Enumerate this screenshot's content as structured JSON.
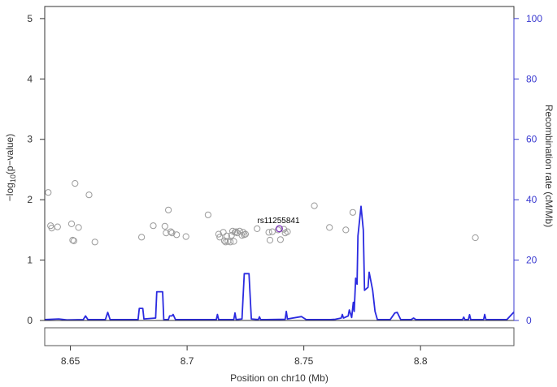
{
  "colors": {
    "recombination": "#2a2ae0",
    "points": "#9a9a9a",
    "lead_snp": "#7a2fb8",
    "axis": "#333333",
    "right_axis": "#3a3ad0"
  },
  "chart_data": {
    "type": "scatter",
    "xlabel": "Position on chr10 (Mb)",
    "ylabel_left": "-log10(p-value)",
    "ylabel_left_parts": {
      "pre": "−log",
      "sub": "10",
      "post": "(p−value)"
    },
    "ylabel_right": "Recombination rate (cM/Mb)",
    "xlim": [
      8.639,
      8.84
    ],
    "ylim_left": [
      0,
      5.2
    ],
    "ylim_right": [
      0,
      104
    ],
    "x_ticks": [
      8.65,
      8.7,
      8.75,
      8.8
    ],
    "x_tick_labels": [
      "8.65",
      "8.7",
      "8.75",
      "8.8"
    ],
    "y_left_ticks": [
      0,
      1,
      2,
      3,
      4,
      5
    ],
    "y_left_tick_labels": [
      "0",
      "1",
      "2",
      "3",
      "4",
      "5"
    ],
    "y_right_ticks": [
      0,
      20,
      40,
      60,
      80,
      100
    ],
    "y_right_tick_labels": [
      "0",
      "20",
      "40",
      "60",
      "80",
      "100"
    ],
    "lead_snp": {
      "name": "rs11255841",
      "x": 8.7395,
      "y": 1.52
    },
    "snps": [
      {
        "x": 8.6405,
        "y": 2.12
      },
      {
        "x": 8.6415,
        "y": 1.57
      },
      {
        "x": 8.642,
        "y": 1.53
      },
      {
        "x": 8.6445,
        "y": 1.55
      },
      {
        "x": 8.6505,
        "y": 1.6
      },
      {
        "x": 8.651,
        "y": 1.33
      },
      {
        "x": 8.6515,
        "y": 1.32
      },
      {
        "x": 8.652,
        "y": 2.27
      },
      {
        "x": 8.6535,
        "y": 1.54
      },
      {
        "x": 8.658,
        "y": 2.08
      },
      {
        "x": 8.6605,
        "y": 1.3
      },
      {
        "x": 8.6805,
        "y": 1.38
      },
      {
        "x": 8.6855,
        "y": 1.57
      },
      {
        "x": 8.6905,
        "y": 1.56
      },
      {
        "x": 8.691,
        "y": 1.45
      },
      {
        "x": 8.692,
        "y": 1.83
      },
      {
        "x": 8.693,
        "y": 1.47
      },
      {
        "x": 8.6935,
        "y": 1.45
      },
      {
        "x": 8.6955,
        "y": 1.42
      },
      {
        "x": 8.6995,
        "y": 1.39
      },
      {
        "x": 8.709,
        "y": 1.75
      },
      {
        "x": 8.7135,
        "y": 1.43
      },
      {
        "x": 8.714,
        "y": 1.38
      },
      {
        "x": 8.7155,
        "y": 1.46
      },
      {
        "x": 8.716,
        "y": 1.32
      },
      {
        "x": 8.7165,
        "y": 1.3
      },
      {
        "x": 8.717,
        "y": 1.4
      },
      {
        "x": 8.7175,
        "y": 1.31
      },
      {
        "x": 8.7185,
        "y": 1.3
      },
      {
        "x": 8.719,
        "y": 1.41
      },
      {
        "x": 8.7195,
        "y": 1.48
      },
      {
        "x": 8.72,
        "y": 1.31
      },
      {
        "x": 8.7205,
        "y": 1.46
      },
      {
        "x": 8.721,
        "y": 1.47
      },
      {
        "x": 8.7215,
        "y": 1.45
      },
      {
        "x": 8.7225,
        "y": 1.48
      },
      {
        "x": 8.7235,
        "y": 1.41
      },
      {
        "x": 8.724,
        "y": 1.46
      },
      {
        "x": 8.7245,
        "y": 1.42
      },
      {
        "x": 8.725,
        "y": 1.43
      },
      {
        "x": 8.73,
        "y": 1.52
      },
      {
        "x": 8.735,
        "y": 1.46
      },
      {
        "x": 8.7355,
        "y": 1.33
      },
      {
        "x": 8.7365,
        "y": 1.47
      },
      {
        "x": 8.739,
        "y": 1.5
      },
      {
        "x": 8.74,
        "y": 1.34
      },
      {
        "x": 8.7415,
        "y": 1.51
      },
      {
        "x": 8.742,
        "y": 1.45
      },
      {
        "x": 8.743,
        "y": 1.47
      },
      {
        "x": 8.7545,
        "y": 1.9
      },
      {
        "x": 8.761,
        "y": 1.54
      },
      {
        "x": 8.768,
        "y": 1.5
      },
      {
        "x": 8.771,
        "y": 1.79
      },
      {
        "x": 8.8235,
        "y": 1.37
      }
    ],
    "recombination": [
      [
        8.639,
        0.3
      ],
      [
        8.645,
        0.5
      ],
      [
        8.6485,
        0.2
      ],
      [
        8.6555,
        0.3
      ],
      [
        8.6565,
        1.5
      ],
      [
        8.6575,
        0.3
      ],
      [
        8.665,
        0.3
      ],
      [
        8.666,
        2.7
      ],
      [
        8.667,
        0.3
      ],
      [
        8.679,
        0.3
      ],
      [
        8.6795,
        4.0
      ],
      [
        8.681,
        4.0
      ],
      [
        8.6815,
        0.5
      ],
      [
        8.6865,
        0.8
      ],
      [
        8.687,
        9.5
      ],
      [
        8.6895,
        9.5
      ],
      [
        8.69,
        0.3
      ],
      [
        8.692,
        0.3
      ],
      [
        8.6925,
        1.5
      ],
      [
        8.6935,
        1.5
      ],
      [
        8.694,
        2.0
      ],
      [
        8.695,
        0.3
      ],
      [
        8.7125,
        0.3
      ],
      [
        8.713,
        2.0
      ],
      [
        8.7135,
        0.3
      ],
      [
        8.72,
        0.3
      ],
      [
        8.7205,
        2.5
      ],
      [
        8.721,
        0.3
      ],
      [
        8.7235,
        0.5
      ],
      [
        8.7245,
        15.5
      ],
      [
        8.7265,
        15.5
      ],
      [
        8.7275,
        0.5
      ],
      [
        8.7305,
        0.3
      ],
      [
        8.731,
        1.2
      ],
      [
        8.7315,
        0.3
      ],
      [
        8.734,
        0.3
      ],
      [
        8.742,
        0.4
      ],
      [
        8.7425,
        3.0
      ],
      [
        8.743,
        0.5
      ],
      [
        8.749,
        1.3
      ],
      [
        8.751,
        0.3
      ],
      [
        8.7615,
        0.3
      ],
      [
        8.7635,
        0.4
      ],
      [
        8.766,
        0.8
      ],
      [
        8.7665,
        2.0
      ],
      [
        8.767,
        0.8
      ],
      [
        8.769,
        1.5
      ],
      [
        8.7695,
        3.5
      ],
      [
        8.7705,
        1.0
      ],
      [
        8.7712,
        6.0
      ],
      [
        8.7716,
        3.0
      ],
      [
        8.7722,
        14.0
      ],
      [
        8.7728,
        12.0
      ],
      [
        8.7732,
        28.0
      ],
      [
        8.7745,
        37.8
      ],
      [
        8.7755,
        30.0
      ],
      [
        8.776,
        10.0
      ],
      [
        8.7775,
        11.0
      ],
      [
        8.778,
        16.0
      ],
      [
        8.7795,
        10.0
      ],
      [
        8.7805,
        3.0
      ],
      [
        8.7815,
        0.3
      ],
      [
        8.787,
        0.3
      ],
      [
        8.789,
        2.5
      ],
      [
        8.79,
        2.7
      ],
      [
        8.7915,
        0.3
      ],
      [
        8.796,
        0.3
      ],
      [
        8.797,
        0.8
      ],
      [
        8.798,
        0.3
      ],
      [
        8.818,
        0.3
      ],
      [
        8.8185,
        1.1
      ],
      [
        8.819,
        0.3
      ],
      [
        8.8205,
        0.3
      ],
      [
        8.821,
        1.9
      ],
      [
        8.8215,
        0.3
      ],
      [
        8.827,
        0.3
      ],
      [
        8.8275,
        2.0
      ],
      [
        8.828,
        0.3
      ],
      [
        8.837,
        0.3
      ],
      [
        8.84,
        2.8
      ]
    ]
  }
}
